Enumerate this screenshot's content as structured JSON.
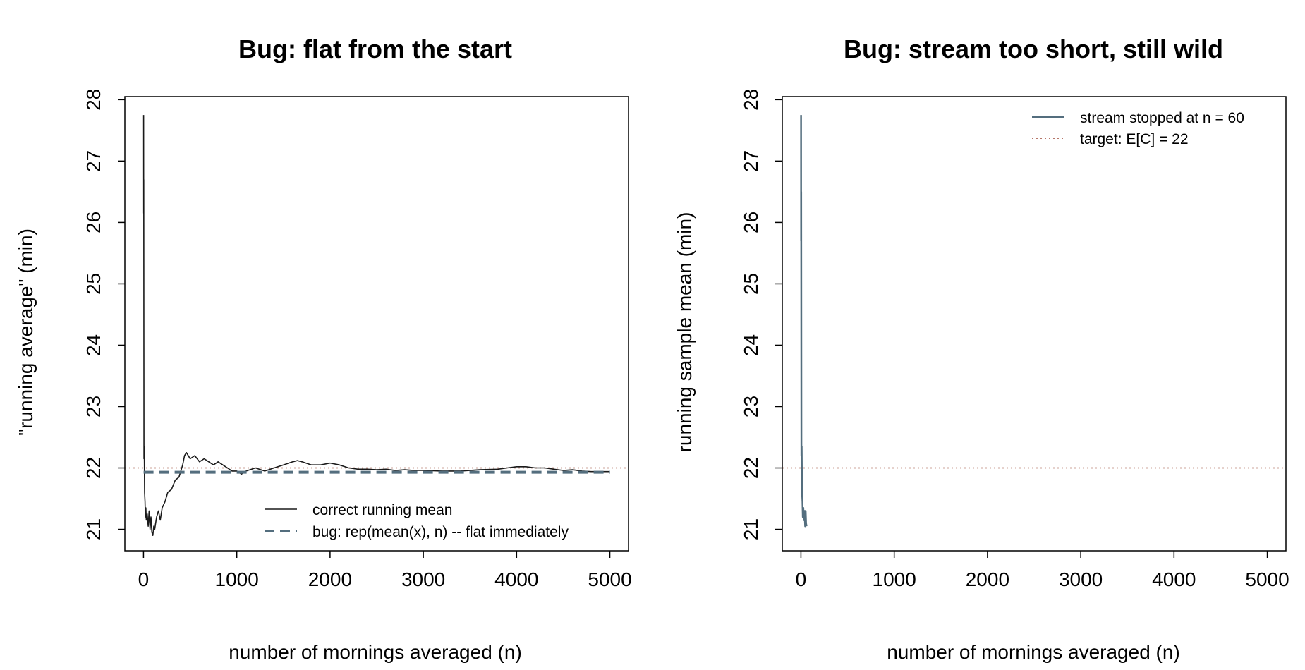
{
  "colors": {
    "correct": "#1a1a1a",
    "bug": "#546e7e",
    "target": "#9e4a38",
    "frame": "#000000"
  },
  "chart_data": [
    {
      "type": "line",
      "title": "Bug: flat from the start",
      "xlabel": "number of mornings averaged (n)",
      "ylabel": "\"running average\" (min)",
      "xlim": [
        -200,
        5200
      ],
      "ylim": [
        20.65,
        28.05
      ],
      "x_ticks": [
        "0",
        "1000",
        "2000",
        "3000",
        "4000",
        "5000"
      ],
      "y_ticks": [
        "21",
        "22",
        "23",
        "24",
        "25",
        "26",
        "27",
        "28"
      ],
      "grid": false,
      "legend_position": "bottom-right",
      "reference_line": {
        "y": 22,
        "style": "dotted"
      },
      "series": [
        {
          "name": "correct running mean",
          "style": "solid",
          "x": [
            1,
            2,
            3,
            5,
            8,
            12,
            16,
            20,
            25,
            30,
            40,
            50,
            60,
            70,
            80,
            90,
            100,
            110,
            120,
            140,
            160,
            180,
            200,
            230,
            260,
            300,
            340,
            380,
            420,
            440,
            460,
            500,
            550,
            600,
            650,
            700,
            750,
            800,
            850,
            900,
            950,
            1000,
            1050,
            1100,
            1200,
            1300,
            1400,
            1500,
            1600,
            1650,
            1700,
            1800,
            1900,
            2000,
            2100,
            2200,
            2300,
            2400,
            2500,
            2600,
            2700,
            2800,
            2900,
            3000,
            3200,
            3400,
            3600,
            3800,
            3900,
            4000,
            4100,
            4200,
            4300,
            4400,
            4500,
            4600,
            4700,
            4800,
            4900,
            5000
          ],
          "values": [
            27.75,
            26.15,
            26.7,
            22.15,
            22.35,
            21.6,
            21.45,
            21.2,
            21.35,
            21.15,
            21.25,
            21.05,
            21.3,
            21.0,
            21.2,
            20.95,
            20.9,
            21.05,
            21.0,
            21.2,
            21.3,
            21.15,
            21.35,
            21.45,
            21.6,
            21.65,
            21.8,
            21.85,
            22.05,
            22.2,
            22.25,
            22.15,
            22.2,
            22.1,
            22.15,
            22.1,
            22.05,
            22.1,
            22.05,
            22.0,
            21.95,
            21.95,
            21.9,
            21.95,
            22.0,
            21.95,
            22.0,
            22.05,
            22.1,
            22.12,
            22.1,
            22.05,
            22.05,
            22.08,
            22.05,
            22.0,
            21.98,
            21.98,
            21.97,
            21.98,
            21.96,
            21.97,
            21.96,
            21.96,
            21.95,
            21.95,
            21.97,
            21.98,
            22.0,
            22.02,
            22.02,
            22.0,
            22.0,
            21.98,
            21.96,
            21.97,
            21.95,
            21.94,
            21.94,
            21.94
          ]
        },
        {
          "name": "bug: rep(mean(x), n) -- flat immediately",
          "style": "dashed",
          "x": [
            1,
            5000
          ],
          "values": [
            21.93,
            21.93
          ]
        }
      ]
    },
    {
      "type": "line",
      "title": "Bug: stream too short, still wild",
      "xlabel": "number of mornings averaged (n)",
      "ylabel": "running sample mean (min)",
      "xlim": [
        -200,
        5200
      ],
      "ylim": [
        20.65,
        28.05
      ],
      "x_ticks": [
        "0",
        "1000",
        "2000",
        "3000",
        "4000",
        "5000"
      ],
      "y_ticks": [
        "21",
        "22",
        "23",
        "24",
        "25",
        "26",
        "27",
        "28"
      ],
      "grid": false,
      "legend_position": "top-right",
      "reference_line": {
        "y": 22,
        "style": "dotted"
      },
      "series": [
        {
          "name": "stream stopped at n = 60",
          "style": "solid",
          "x": [
            1,
            2,
            3,
            5,
            8,
            12,
            16,
            20,
            25,
            30,
            35,
            40,
            45,
            50,
            55,
            60
          ],
          "values": [
            27.75,
            25.7,
            26.5,
            22.2,
            22.35,
            21.6,
            21.45,
            21.2,
            21.35,
            21.15,
            21.3,
            21.25,
            21.05,
            21.3,
            21.1,
            21.05
          ]
        }
      ],
      "legend_entries": [
        {
          "label": "stream stopped at n = 60",
          "style": "solid"
        },
        {
          "label": "target: E[C] = 22",
          "style": "dotted"
        }
      ]
    }
  ]
}
